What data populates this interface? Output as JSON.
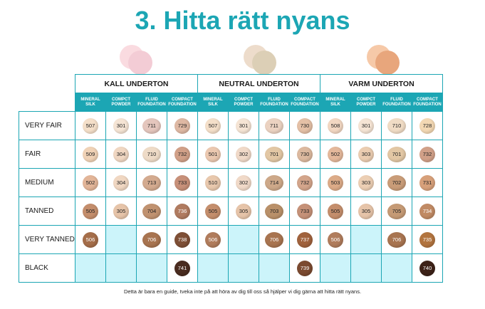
{
  "title": "3. Hitta rätt nyans",
  "groups": [
    {
      "label": "KALL UNDERTON",
      "dots": [
        "#fadbe0",
        "#f3ccd5"
      ]
    },
    {
      "label": "NEUTRAL UNDERTON",
      "dots": [
        "#eddccb",
        "#dccfb6"
      ]
    },
    {
      "label": "VARM UNDERTON",
      "dots": [
        "#f6c9a8",
        "#e8a67c"
      ]
    }
  ],
  "columns": [
    "MINERAL SILK",
    "COMPCT POWDER",
    "FLUID FOUNDATION",
    "COMPACT FOUNDATION"
  ],
  "rows": [
    {
      "label": "VERY FAIR",
      "cells": [
        {
          "v": "507",
          "c": "#f4dfc9"
        },
        {
          "v": "301",
          "c": "#f5e4d4"
        },
        {
          "v": "711",
          "c": "#e4c6bd"
        },
        {
          "v": "729",
          "c": "#deb8a3"
        },
        {
          "v": "507",
          "c": "#f4dfc9"
        },
        {
          "v": "301",
          "c": "#f5e4d4"
        },
        {
          "v": "711",
          "c": "#ebd2c1"
        },
        {
          "v": "730",
          "c": "#e4c0a6"
        },
        {
          "v": "508",
          "c": "#f2d7c2"
        },
        {
          "v": "301",
          "c": "#f5e4d4"
        },
        {
          "v": "710",
          "c": "#f0dcc5"
        },
        {
          "v": "728",
          "c": "#f3d8b3"
        }
      ]
    },
    {
      "label": "FAIR",
      "cells": [
        {
          "v": "509",
          "c": "#f0d2b6"
        },
        {
          "v": "304",
          "c": "#f0d7c2"
        },
        {
          "v": "710",
          "c": "#eedbc7"
        },
        {
          "v": "732",
          "c": "#d1a088"
        },
        {
          "v": "501",
          "c": "#ebc8b0"
        },
        {
          "v": "302",
          "c": "#f0d9c8"
        },
        {
          "v": "701",
          "c": "#e2c7a4"
        },
        {
          "v": "730",
          "c": "#dcb99f"
        },
        {
          "v": "502",
          "c": "#e4b89b"
        },
        {
          "v": "303",
          "c": "#ebcdb1"
        },
        {
          "v": "701",
          "c": "#e2c7a4"
        },
        {
          "v": "732",
          "c": "#d1a088"
        }
      ]
    },
    {
      "label": "MEDIUM",
      "cells": [
        {
          "v": "502",
          "c": "#e2b598"
        },
        {
          "v": "304",
          "c": "#f0d7c2"
        },
        {
          "v": "713",
          "c": "#d3aa8f"
        },
        {
          "v": "733",
          "c": "#c79079"
        },
        {
          "v": "510",
          "c": "#e8c8ad"
        },
        {
          "v": "302",
          "c": "#f0d9c8"
        },
        {
          "v": "714",
          "c": "#cda889"
        },
        {
          "v": "732",
          "c": "#d3a58b"
        },
        {
          "v": "503",
          "c": "#dcab88"
        },
        {
          "v": "303",
          "c": "#eccfb4"
        },
        {
          "v": "702",
          "c": "#c99c78"
        },
        {
          "v": "731",
          "c": "#d7a07a"
        }
      ]
    },
    {
      "label": "TANNED",
      "cells": [
        {
          "v": "505",
          "c": "#c48e6c"
        },
        {
          "v": "305",
          "c": "#e6c4a9"
        },
        {
          "v": "704",
          "c": "#c09270"
        },
        {
          "v": "736",
          "c": "#b07b60"
        },
        {
          "v": "505",
          "c": "#c48e6c"
        },
        {
          "v": "305",
          "c": "#e6c4a9"
        },
        {
          "v": "703",
          "c": "#b99069"
        },
        {
          "v": "733",
          "c": "#c59178"
        },
        {
          "v": "505",
          "c": "#c48e6c"
        },
        {
          "v": "305",
          "c": "#e6c4a9"
        },
        {
          "v": "705",
          "c": "#c59a75"
        },
        {
          "v": "734",
          "c": "#c08a64"
        }
      ]
    },
    {
      "label": "VERY TANNED",
      "cells": [
        {
          "v": "506",
          "c": "#a56e4a"
        },
        {
          "v": "",
          "c": ""
        },
        {
          "v": "706",
          "c": "#a87450"
        },
        {
          "v": "738",
          "c": "#7e4f36"
        },
        {
          "v": "506",
          "c": "#b07c5c"
        },
        {
          "v": "",
          "c": ""
        },
        {
          "v": "706",
          "c": "#a87450"
        },
        {
          "v": "737",
          "c": "#a0623d"
        },
        {
          "v": "506",
          "c": "#b07c5c"
        },
        {
          "v": "",
          "c": ""
        },
        {
          "v": "706",
          "c": "#a87450"
        },
        {
          "v": "735",
          "c": "#b2743f"
        }
      ]
    },
    {
      "label": "BLACK",
      "cells": [
        {
          "v": "",
          "c": ""
        },
        {
          "v": "",
          "c": ""
        },
        {
          "v": "",
          "c": ""
        },
        {
          "v": "741",
          "c": "#4a2c20"
        },
        {
          "v": "",
          "c": ""
        },
        {
          "v": "",
          "c": ""
        },
        {
          "v": "",
          "c": ""
        },
        {
          "v": "739",
          "c": "#7b4a30"
        },
        {
          "v": "",
          "c": ""
        },
        {
          "v": "",
          "c": ""
        },
        {
          "v": "",
          "c": ""
        },
        {
          "v": "740",
          "c": "#3d2218"
        }
      ]
    }
  ],
  "footer": "Detta är bara en guide, tveka inte på att höra av dig till oss så hjälper vi dig gärna att hitta rätt nyans."
}
